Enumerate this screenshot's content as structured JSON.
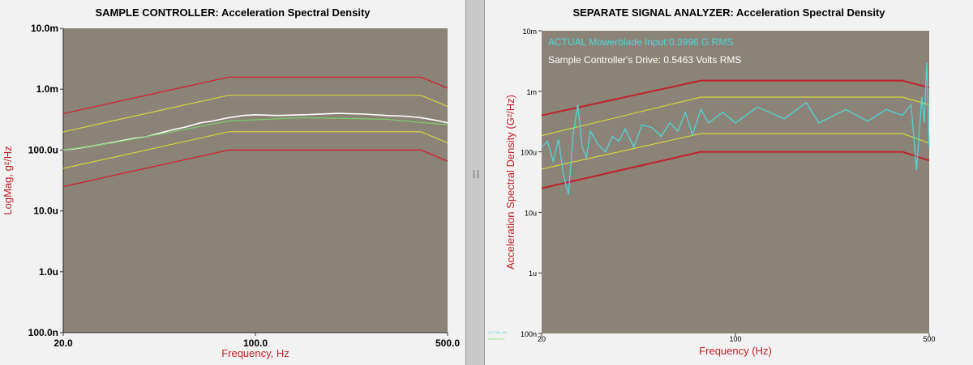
{
  "left": {
    "title": "SAMPLE CONTROLLER:  Acceleration Spectral Density",
    "chart_data": {
      "type": "line",
      "xlabel": "Frequency, Hz",
      "ylabel": "LogMag, g²/Hz",
      "xscale": "log",
      "yscale": "log",
      "xlim": [
        20,
        500
      ],
      "ylim": [
        1e-07,
        0.01
      ],
      "x_ticks": [
        {
          "value": 20,
          "label": "20.0"
        },
        {
          "value": 100,
          "label": "100.0"
        },
        {
          "value": 500,
          "label": "500.0"
        }
      ],
      "y_ticks": [
        {
          "value": 0.01,
          "label": "10.0m"
        },
        {
          "value": 0.001,
          "label": "1.0m"
        },
        {
          "value": 0.0001,
          "label": "100.0u"
        },
        {
          "value": 1e-05,
          "label": "10.0u"
        },
        {
          "value": 1e-06,
          "label": "1.0u"
        },
        {
          "value": 1e-07,
          "label": "100.0n"
        }
      ],
      "grid": false,
      "series": [
        {
          "color": "#d81a2a",
          "x": [
            20,
            80,
            400,
            500
          ],
          "y": [
            0.000397,
            0.00158,
            0.00158,
            0.00104
          ]
        },
        {
          "color": "#d8d83a",
          "x": [
            20,
            80,
            400,
            500
          ],
          "y": [
            0.000199,
            0.000794,
            0.000794,
            0.00052
          ]
        },
        {
          "color": "#d8d83a",
          "x": [
            20,
            80,
            400,
            500
          ],
          "y": [
            4.99e-05,
            0.0002,
            0.0002,
            0.000131
          ]
        },
        {
          "color": "#d81a2a",
          "x": [
            20,
            80,
            400,
            500
          ],
          "y": [
            2.51e-05,
            0.0001,
            0.0001,
            6.56e-05
          ]
        },
        {
          "color": "#ffffff",
          "x": [
            20,
            22,
            25,
            28,
            32,
            36,
            40,
            45,
            50,
            56,
            63,
            70,
            80,
            90,
            100,
            120,
            150,
            200,
            250,
            300,
            350,
            400,
            450,
            500
          ],
          "y": [
            0.0001,
            0.000105,
            0.000115,
            0.000125,
            0.00014,
            0.000155,
            0.000165,
            0.00019,
            0.000215,
            0.00024,
            0.00028,
            0.0003,
            0.00034,
            0.00037,
            0.00038,
            0.00037,
            0.00038,
            0.0004,
            0.00039,
            0.00037,
            0.00036,
            0.00034,
            0.00031,
            0.00028
          ]
        },
        {
          "color": "#7ccf6a",
          "x": [
            20,
            30,
            50,
            80,
            150,
            300,
            500
          ],
          "y": [
            0.0001,
            0.00013,
            0.0002,
            0.0003,
            0.00034,
            0.00032,
            0.00026
          ]
        }
      ]
    }
  },
  "right": {
    "title": "SEPARATE SIGNAL ANALYZER:  Acceleration Spectral Density",
    "annotations": {
      "actual": "ACTUAL Mowerblade Input:0.3996 G RMS",
      "drive": "Sample Controller's Drive: 0.5463 Volts RMS"
    },
    "chart_data": {
      "type": "line",
      "xlabel": "Frequency (Hz)",
      "ylabel": "Acceleration Spectral Density (G²/Hz)",
      "xscale": "log",
      "yscale": "log",
      "xlim": [
        20,
        500
      ],
      "ylim": [
        1e-07,
        0.01
      ],
      "x_ticks": [
        {
          "value": 20,
          "label": "20"
        },
        {
          "value": 100,
          "label": "100"
        },
        {
          "value": 500,
          "label": "500"
        }
      ],
      "y_ticks": [
        {
          "value": 0.01,
          "label": "10m"
        },
        {
          "value": 0.001,
          "label": "1m"
        },
        {
          "value": 0.0001,
          "label": "100u"
        },
        {
          "value": 1e-05,
          "label": "10u"
        },
        {
          "value": 1e-06,
          "label": "1u"
        },
        {
          "value": 1e-07,
          "label": "100n"
        }
      ],
      "grid": false,
      "series": [
        {
          "color": "#c0202a",
          "x": [
            20,
            75,
            400,
            500
          ],
          "y": [
            0.0004,
            0.0015,
            0.0015,
            0.00115
          ]
        },
        {
          "color": "#d8d83a",
          "x": [
            20,
            75,
            400,
            500
          ],
          "y": [
            0.000185,
            0.0008,
            0.0008,
            0.0006
          ]
        },
        {
          "color": "#d8d83a",
          "x": [
            20,
            75,
            400,
            500
          ],
          "y": [
            5.2e-05,
            0.0002,
            0.0002,
            0.00014
          ]
        },
        {
          "color": "#c0202a",
          "x": [
            20,
            75,
            400,
            500
          ],
          "y": [
            2.5e-05,
            0.0001,
            0.0001,
            7.2e-05
          ]
        },
        {
          "color": "#4fd6d6",
          "x": [
            20,
            21,
            22,
            23,
            24,
            25,
            26,
            27,
            28,
            29,
            30,
            32,
            34,
            36,
            38,
            40,
            43,
            46,
            50,
            54,
            58,
            62,
            66,
            70,
            75,
            80,
            90,
            100,
            120,
            150,
            180,
            200,
            250,
            300,
            350,
            400,
            430,
            450,
            470,
            480,
            490,
            500
          ],
          "y": [
            0.00012,
            0.00015,
            7e-05,
            0.00016,
            4e-05,
            2e-05,
            0.0002,
            0.0006,
            0.00012,
            8e-05,
            0.00022,
            0.00013,
            0.0001,
            0.00018,
            0.00015,
            0.00024,
            0.00012,
            0.00028,
            0.00025,
            0.00018,
            0.0003,
            0.00022,
            0.00045,
            0.00019,
            0.0005,
            0.0003,
            0.00045,
            0.0003,
            0.00055,
            0.00035,
            0.00065,
            0.0003,
            0.0005,
            0.00032,
            0.0005,
            0.0004,
            0.0006,
            5e-05,
            0.0008,
            0.0003,
            0.003,
            0.00012
          ]
        }
      ]
    }
  },
  "legend_mini": [
    "ACTUAL 1ch",
    "Control 2ch"
  ],
  "colors": {
    "plot_bg": "#8b8278",
    "axis_label_color": "#c0202a",
    "tick_color": "#000000"
  }
}
